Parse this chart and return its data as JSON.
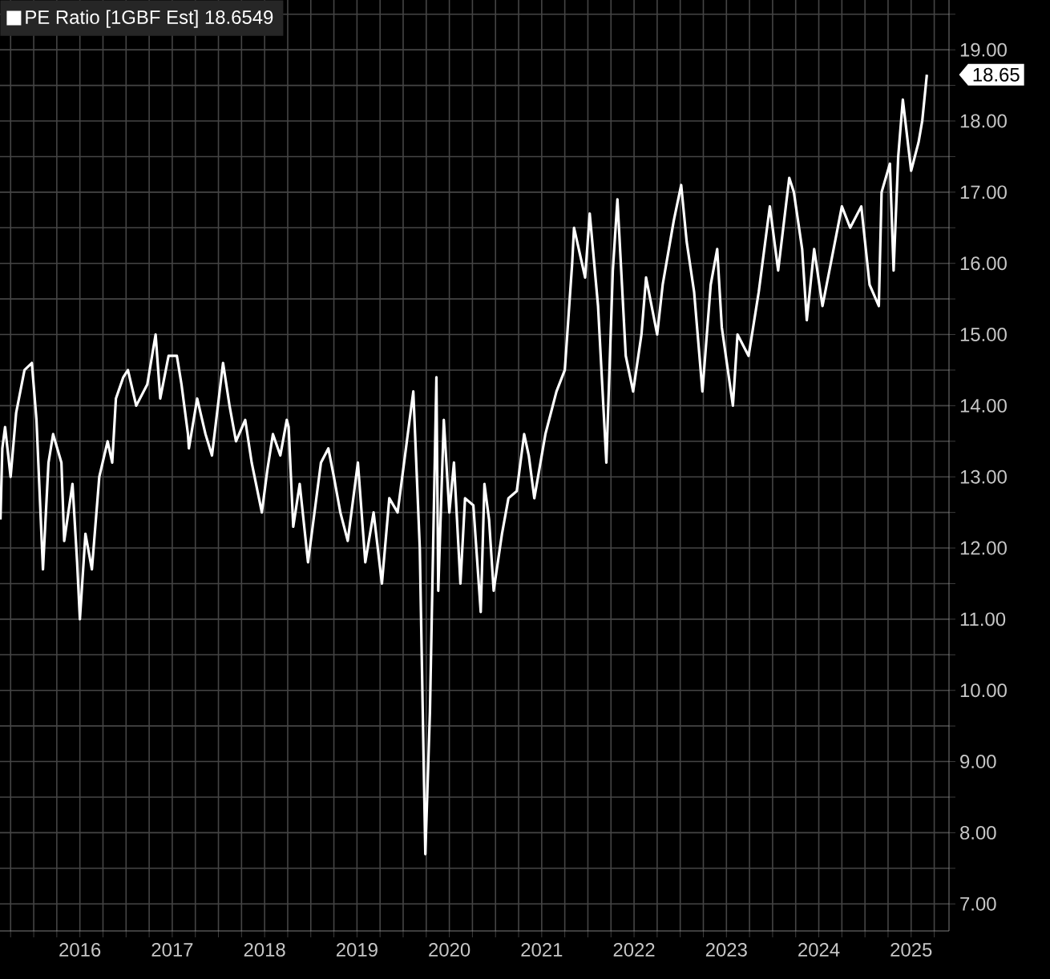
{
  "chart_data": {
    "type": "line",
    "x": [
      2015.64,
      2015.66,
      2015.69,
      2015.75,
      2015.81,
      2015.9,
      2015.98,
      2016.03,
      2016.1,
      2016.16,
      2016.21,
      2016.3,
      2016.33,
      2016.42,
      2016.47,
      2016.5,
      2016.56,
      2016.63,
      2016.71,
      2016.8,
      2016.85,
      2016.89,
      2016.97,
      2017.02,
      2017.11,
      2017.23,
      2017.32,
      2017.37,
      2017.46,
      2017.55,
      2017.6,
      2017.67,
      2017.68,
      2017.77,
      2017.86,
      2017.93,
      2018.05,
      2018.12,
      2018.19,
      2018.29,
      2018.36,
      2018.47,
      2018.53,
      2018.59,
      2018.67,
      2018.74,
      2018.76,
      2018.81,
      2018.88,
      2018.97,
      2019.06,
      2019.11,
      2019.19,
      2019.25,
      2019.32,
      2019.4,
      2019.51,
      2019.59,
      2019.68,
      2019.77,
      2019.85,
      2019.94,
      2020.01,
      2020.11,
      2020.18,
      2020.24,
      2020.29,
      2020.36,
      2020.38,
      2020.44,
      2020.5,
      2020.55,
      2020.62,
      2020.67,
      2020.76,
      2020.84,
      2020.88,
      2020.93,
      2020.98,
      2021.07,
      2021.14,
      2021.23,
      2021.31,
      2021.36,
      2021.42,
      2021.54,
      2021.66,
      2021.75,
      2021.83,
      2021.85,
      2021.97,
      2022.02,
      2022.11,
      2022.2,
      2022.27,
      2022.32,
      2022.41,
      2022.49,
      2022.58,
      2022.63,
      2022.75,
      2022.81,
      2022.93,
      2023.01,
      2023.07,
      2023.15,
      2023.24,
      2023.33,
      2023.4,
      2023.45,
      2023.57,
      2023.62,
      2023.74,
      2023.85,
      2023.97,
      2024.06,
      2024.18,
      2024.23,
      2024.32,
      2024.37,
      2024.45,
      2024.54,
      2024.63,
      2024.75,
      2024.84,
      2024.96,
      2025.05,
      2025.15,
      2025.18,
      2025.27,
      2025.31,
      2025.36,
      2025.41,
      2025.5,
      2025.58,
      2025.62,
      2025.67
    ],
    "series": [
      {
        "name": "PE Ratio [1GBF Est]  18.6549",
        "color": "#ffffff",
        "values": [
          12.4,
          13.4,
          13.7,
          13.0,
          13.9,
          14.5,
          14.6,
          13.8,
          11.7,
          13.2,
          13.6,
          13.2,
          12.1,
          12.9,
          11.8,
          11.0,
          12.2,
          11.7,
          13.0,
          13.5,
          13.2,
          14.1,
          14.4,
          14.5,
          14.0,
          14.3,
          15.0,
          14.1,
          14.7,
          14.7,
          14.3,
          13.6,
          13.4,
          14.1,
          13.6,
          13.3,
          14.6,
          14.0,
          13.5,
          13.8,
          13.2,
          12.5,
          13.1,
          13.6,
          13.3,
          13.8,
          13.7,
          12.3,
          12.9,
          11.8,
          12.7,
          13.2,
          13.4,
          13.0,
          12.5,
          12.1,
          13.2,
          11.8,
          12.5,
          11.5,
          12.7,
          12.5,
          13.2,
          14.2,
          12.0,
          7.7,
          9.7,
          14.4,
          11.4,
          13.8,
          12.5,
          13.2,
          11.5,
          12.7,
          12.6,
          11.1,
          12.9,
          12.4,
          11.4,
          12.2,
          12.7,
          12.8,
          13.6,
          13.3,
          12.7,
          13.6,
          14.2,
          14.5,
          16.0,
          16.5,
          15.8,
          16.7,
          15.4,
          13.2,
          15.9,
          16.9,
          14.7,
          14.2,
          15.0,
          15.8,
          15.0,
          15.7,
          16.6,
          17.1,
          16.3,
          15.6,
          14.2,
          15.7,
          16.2,
          15.1,
          14.0,
          15.0,
          14.7,
          15.6,
          16.8,
          15.9,
          17.2,
          17.0,
          16.2,
          15.2,
          16.2,
          15.4,
          16.0,
          16.8,
          16.5,
          16.8,
          15.7,
          15.4,
          17.0,
          17.4,
          15.9,
          17.5,
          18.3,
          17.3,
          17.7,
          18.0,
          18.65
        ]
      }
    ],
    "xlim": [
      2015.635,
      2025.91
    ],
    "xticks": [
      {
        "value": 2015.75,
        "label": null
      },
      {
        "value": 2016,
        "label": null
      },
      {
        "value": 2016.25,
        "label": null
      },
      {
        "value": 2016.5,
        "label": "2016"
      },
      {
        "value": 2016.75,
        "label": null
      },
      {
        "value": 2017,
        "label": null
      },
      {
        "value": 2017.25,
        "label": null
      },
      {
        "value": 2017.5,
        "label": "2017"
      },
      {
        "value": 2017.75,
        "label": null
      },
      {
        "value": 2018,
        "label": null
      },
      {
        "value": 2018.25,
        "label": null
      },
      {
        "value": 2018.5,
        "label": "2018"
      },
      {
        "value": 2018.75,
        "label": null
      },
      {
        "value": 2019,
        "label": null
      },
      {
        "value": 2019.25,
        "label": null
      },
      {
        "value": 2019.5,
        "label": "2019"
      },
      {
        "value": 2019.75,
        "label": null
      },
      {
        "value": 2020,
        "label": null
      },
      {
        "value": 2020.25,
        "label": null
      },
      {
        "value": 2020.5,
        "label": "2020"
      },
      {
        "value": 2020.75,
        "label": null
      },
      {
        "value": 2021,
        "label": null
      },
      {
        "value": 2021.25,
        "label": null
      },
      {
        "value": 2021.5,
        "label": "2021"
      },
      {
        "value": 2021.75,
        "label": null
      },
      {
        "value": 2022,
        "label": null
      },
      {
        "value": 2022.25,
        "label": null
      },
      {
        "value": 2022.5,
        "label": "2022"
      },
      {
        "value": 2022.75,
        "label": null
      },
      {
        "value": 2023,
        "label": null
      },
      {
        "value": 2023.25,
        "label": null
      },
      {
        "value": 2023.5,
        "label": "2023"
      },
      {
        "value": 2023.75,
        "label": null
      },
      {
        "value": 2024,
        "label": null
      },
      {
        "value": 2024.25,
        "label": null
      },
      {
        "value": 2024.5,
        "label": "2024"
      },
      {
        "value": 2024.75,
        "label": null
      },
      {
        "value": 2025,
        "label": null
      },
      {
        "value": 2025.25,
        "label": null
      },
      {
        "value": 2025.5,
        "label": "2025"
      },
      {
        "value": 2025.75,
        "label": null
      }
    ],
    "ylim": [
      6.62,
      19.7
    ],
    "yticks": [
      {
        "value": 7,
        "label": "7.00"
      },
      {
        "value": 7.5,
        "label": null
      },
      {
        "value": 8,
        "label": "8.00"
      },
      {
        "value": 8.5,
        "label": null
      },
      {
        "value": 9,
        "label": "9.00"
      },
      {
        "value": 9.5,
        "label": null
      },
      {
        "value": 10,
        "label": "10.00"
      },
      {
        "value": 10.5,
        "label": null
      },
      {
        "value": 11,
        "label": "11.00"
      },
      {
        "value": 11.5,
        "label": null
      },
      {
        "value": 12,
        "label": "12.00"
      },
      {
        "value": 12.5,
        "label": null
      },
      {
        "value": 13,
        "label": "13.00"
      },
      {
        "value": 13.5,
        "label": null
      },
      {
        "value": 14,
        "label": "14.00"
      },
      {
        "value": 14.5,
        "label": null
      },
      {
        "value": 15,
        "label": "15.00"
      },
      {
        "value": 15.5,
        "label": null
      },
      {
        "value": 16,
        "label": "16.00"
      },
      {
        "value": 16.5,
        "label": null
      },
      {
        "value": 17,
        "label": "17.00"
      },
      {
        "value": 17.5,
        "label": null
      },
      {
        "value": 18,
        "label": "18.00"
      },
      {
        "value": 18.5,
        "label": null
      },
      {
        "value": 19,
        "label": "19.00"
      },
      {
        "value": 19.5,
        "label": null
      }
    ],
    "annotations": [
      "18.65"
    ],
    "grid": true,
    "legend": "top left",
    "marker": "none",
    "line_style": "solid"
  }
}
